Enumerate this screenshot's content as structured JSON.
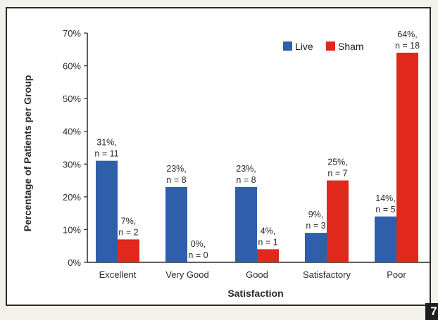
{
  "figure_number": "7",
  "colors": {
    "live": "#2f5fab",
    "sham": "#e0281c",
    "axis": "#2a2a2a"
  },
  "chart_data": {
    "type": "bar",
    "xlabel": "Satisfaction",
    "ylabel": "Percentage of Patients per Group",
    "ylim": [
      0,
      70
    ],
    "yticks": [
      0,
      10,
      20,
      30,
      40,
      50,
      60,
      70
    ],
    "ytick_labels": [
      "0%",
      "10%",
      "20%",
      "30%",
      "40%",
      "50%",
      "60%",
      "70%"
    ],
    "legend_position": "top-right",
    "grid": false,
    "categories": [
      "Excellent",
      "Very Good",
      "Good",
      "Satisfactory",
      "Poor"
    ],
    "series": [
      {
        "name": "Live",
        "color": "#2f5fab",
        "values": [
          31,
          23,
          23,
          9,
          14
        ],
        "labels": [
          [
            "31%,",
            "n = 11"
          ],
          [
            "23%,",
            "n = 8"
          ],
          [
            "23%,",
            "n = 8"
          ],
          [
            "9%,",
            "n = 3"
          ],
          [
            "14%,",
            "n = 5"
          ]
        ]
      },
      {
        "name": "Sham",
        "color": "#e0281c",
        "values": [
          7,
          0,
          4,
          25,
          64
        ],
        "labels": [
          [
            "7%,",
            "n = 2"
          ],
          [
            "0%,",
            "n = 0"
          ],
          [
            "4%,",
            "n = 1"
          ],
          [
            "25%,",
            "n = 7"
          ],
          [
            "64%,",
            "n = 18"
          ]
        ]
      }
    ]
  }
}
